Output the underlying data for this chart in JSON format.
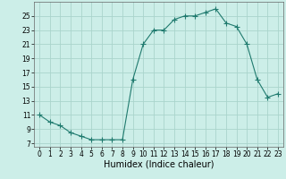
{
  "x": [
    0,
    1,
    2,
    3,
    4,
    5,
    6,
    7,
    8,
    9,
    10,
    11,
    12,
    13,
    14,
    15,
    16,
    17,
    18,
    19,
    20,
    21,
    22,
    23
  ],
  "y": [
    11,
    10,
    9.5,
    8.5,
    8,
    7.5,
    7.5,
    7.5,
    7.5,
    16,
    21,
    23,
    23,
    24.5,
    25,
    25,
    25.5,
    26,
    24,
    23.5,
    21,
    16,
    13.5,
    14
  ],
  "line_color": "#1f7a6e",
  "marker": "+",
  "marker_size": 4,
  "bg_color": "#cceee8",
  "grid_color": "#aad4cc",
  "xlabel": "Humidex (Indice chaleur)",
  "xlim": [
    -0.5,
    23.5
  ],
  "ylim": [
    6.5,
    27
  ],
  "xticks": [
    0,
    1,
    2,
    3,
    4,
    5,
    6,
    7,
    8,
    9,
    10,
    11,
    12,
    13,
    14,
    15,
    16,
    17,
    18,
    19,
    20,
    21,
    22,
    23
  ],
  "yticks": [
    7,
    9,
    11,
    13,
    15,
    17,
    19,
    21,
    23,
    25
  ],
  "tick_fontsize": 5.5,
  "xlabel_fontsize": 7.0,
  "title": ""
}
